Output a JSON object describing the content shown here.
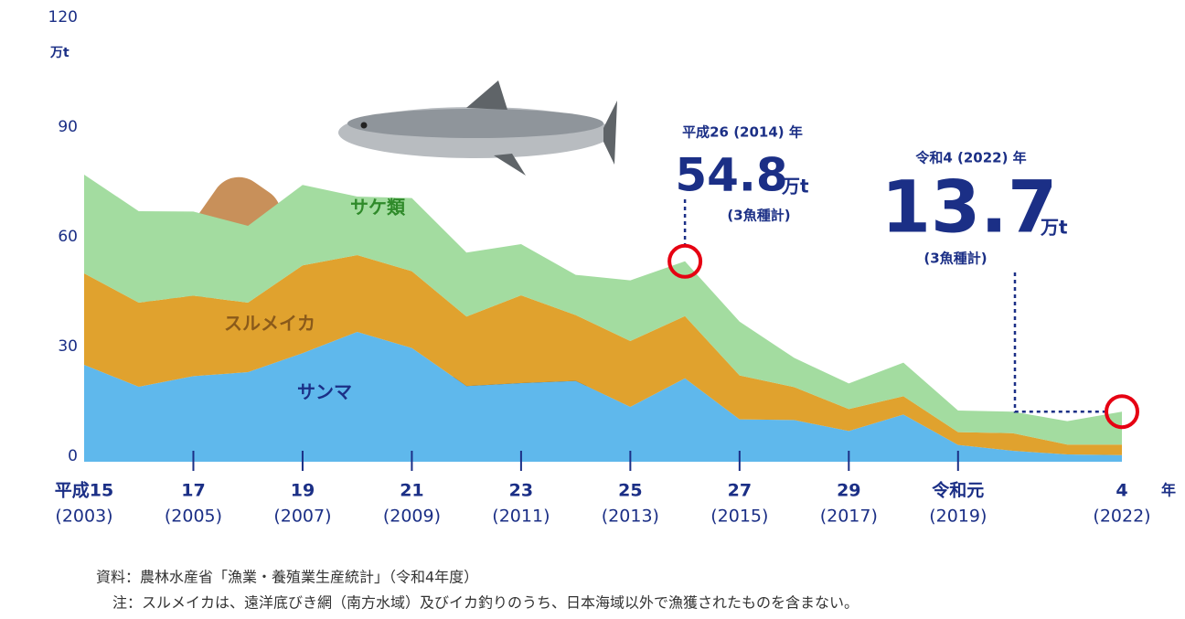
{
  "chart_data": {
    "type": "stacked_area",
    "y_unit": "万t",
    "x_unit": "年",
    "x": [
      2003,
      2004,
      2005,
      2006,
      2007,
      2008,
      2009,
      2010,
      2011,
      2012,
      2013,
      2014,
      2015,
      2016,
      2017,
      2018,
      2019,
      2020,
      2021,
      2022
    ],
    "xlim": [
      2003,
      2022
    ],
    "xticks": [
      {
        "value": 2003,
        "label": "平成15",
        "sublabel": "(2003)"
      },
      {
        "value": 2005,
        "label": "17",
        "sublabel": "(2005)"
      },
      {
        "value": 2007,
        "label": "19",
        "sublabel": "(2007)"
      },
      {
        "value": 2009,
        "label": "21",
        "sublabel": "(2009)"
      },
      {
        "value": 2011,
        "label": "23",
        "sublabel": "(2011)"
      },
      {
        "value": 2013,
        "label": "25",
        "sublabel": "(2013)"
      },
      {
        "value": 2015,
        "label": "27",
        "sublabel": "(2015)"
      },
      {
        "value": 2017,
        "label": "29",
        "sublabel": "(2017)"
      },
      {
        "value": 2019,
        "label": "令和元",
        "sublabel": "(2019)"
      },
      {
        "value": 2022,
        "label": "4",
        "sublabel": "(2022)"
      }
    ],
    "ylim": [
      0,
      120
    ],
    "yticks": [
      0,
      30,
      60,
      90,
      120
    ],
    "series": [
      {
        "name": "サンマ",
        "color": "#5fb8ec",
        "label_color": "#1b2f86",
        "values": [
          26.5,
          20.5,
          23.4,
          24.5,
          29.7,
          35.5,
          31.1,
          20.7,
          21.5,
          22.1,
          15.0,
          22.8,
          11.6,
          11.4,
          8.4,
          12.9,
          4.6,
          3.0,
          2.0,
          1.8
        ]
      },
      {
        "name": "スルメイカ",
        "color": "#e0a22e",
        "label_color": "#8a5a1a",
        "values": [
          25,
          23,
          22,
          19,
          24,
          21,
          21,
          19,
          24,
          18,
          18,
          17,
          12,
          9,
          6,
          5,
          3.5,
          4.8,
          2.7,
          2.9
        ]
      },
      {
        "name": "サケ類",
        "color": "#a3dca0",
        "label_color": "#2f8a2a",
        "values": [
          27,
          25,
          23,
          21,
          22,
          16,
          20,
          17.5,
          14,
          11,
          16.6,
          15,
          14.7,
          8,
          7,
          9.2,
          5.9,
          5.9,
          6.4,
          9.0
        ]
      }
    ],
    "annotations": [
      {
        "title": "平成26 (2014) 年",
        "x": 2014,
        "value": 54.8,
        "unit": "万t",
        "note": "(3魚種計)"
      },
      {
        "title": "令和4 (2022) 年",
        "x": 2022,
        "value": 13.7,
        "unit": "万t",
        "note": "(3魚種計)"
      }
    ],
    "source": "資料：農林水産省「漁業・養殖業生産統計」（令和4年度）",
    "footnote": "注：スルメイカは、遠洋底びき網（南方水域）及びイカ釣りのうち、日本海域以外で漁獲されたものを含まない。"
  }
}
